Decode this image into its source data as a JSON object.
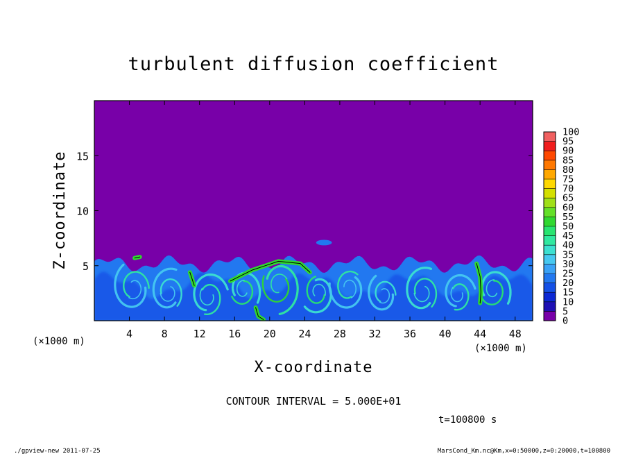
{
  "chart_data": {
    "type": "heatmap",
    "title": "turbulent diffusion coefficient",
    "xlabel": "X-coordinate",
    "ylabel": "Z-coordinate",
    "x_unit": "(×1000 m)",
    "y_unit": "(×1000 m)",
    "xlim": [
      0,
      50
    ],
    "ylim": [
      0,
      20
    ],
    "xticks": [
      4,
      8,
      12,
      16,
      20,
      24,
      28,
      32,
      36,
      40,
      44,
      48
    ],
    "yticks": [
      5,
      10,
      15
    ],
    "colorbar": {
      "levels": [
        0,
        5,
        10,
        15,
        20,
        25,
        30,
        35,
        40,
        45,
        50,
        55,
        60,
        65,
        70,
        75,
        80,
        85,
        90,
        95,
        100
      ],
      "colors": [
        "#7800a8",
        "#1e10b4",
        "#0c28d4",
        "#1450e6",
        "#2278f0",
        "#3aa2f6",
        "#46c8f0",
        "#3ce0d0",
        "#30e8a0",
        "#28e470",
        "#30d830",
        "#64e028",
        "#a0e018",
        "#d4e000",
        "#ffd800",
        "#ffa800",
        "#ff7800",
        "#ff4800",
        "#f01c1c",
        "#f06060"
      ]
    },
    "background_value": 0,
    "boundary_layer_top_km": 5.5,
    "contour_interval": "5.000E+01",
    "contour_level": 50
  },
  "annotations": {
    "contour_interval": "CONTOUR INTERVAL = 5.000E+01",
    "time": "t=100800 s",
    "footer_left": "./gpview-new 2011-07-25",
    "footer_right": "MarsCond_Km.nc@Km,x=0:50000,z=0:20000,t=100800"
  }
}
